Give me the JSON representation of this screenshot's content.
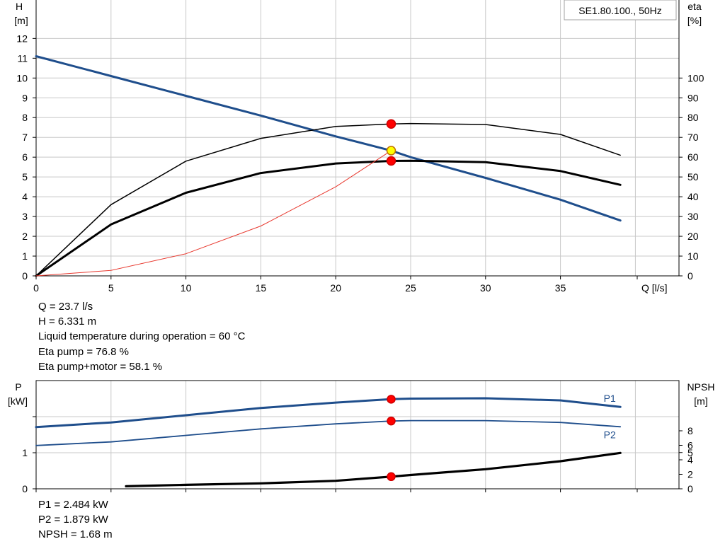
{
  "chart_data": [
    {
      "type": "line",
      "name": "pump-curves",
      "title": "",
      "legend_box": "SE1.80.100., 50Hz",
      "xlabel": "Q [l/s]",
      "ylabel_left_line1": "H",
      "ylabel_left_line2": "[m]",
      "ylabel_right_line1": "eta",
      "ylabel_right_line2": "[%]",
      "xlim": [
        0,
        40
      ],
      "ylim_left": [
        0,
        13
      ],
      "ylim_right": [
        0,
        130
      ],
      "x_ticks": [
        0,
        5,
        10,
        15,
        20,
        25,
        30,
        35
      ],
      "y_ticks_left": [
        0,
        1,
        2,
        3,
        4,
        5,
        6,
        7,
        8,
        9,
        10,
        11,
        12
      ],
      "y_ticks_right": [
        0,
        10,
        20,
        30,
        40,
        50,
        60,
        70,
        80,
        90,
        100
      ],
      "grid": true,
      "series": [
        {
          "axis": "left",
          "color": "#1f4e8c",
          "x": [
            0,
            5,
            10,
            15,
            20,
            23.7,
            25,
            30,
            35,
            39
          ],
          "y": [
            11.1,
            10.1,
            9.1,
            8.1,
            7.05,
            6.331,
            6.0,
            4.95,
            3.85,
            2.8
          ]
        },
        {
          "axis": "right",
          "color": "#000000",
          "x": [
            0,
            5,
            10,
            15,
            20,
            23.7,
            25,
            30,
            35,
            39
          ],
          "y": [
            0,
            36,
            58,
            69.5,
            75.5,
            76.8,
            77,
            76.5,
            71.5,
            61
          ]
        },
        {
          "axis": "right",
          "color": "#000000",
          "x": [
            0,
            5,
            10,
            15,
            20,
            23.7,
            25,
            30,
            35,
            39
          ],
          "y": [
            0,
            26,
            42,
            52,
            56.8,
            58.1,
            58.2,
            57.5,
            53,
            46
          ]
        },
        {
          "axis": "left",
          "color": "#e8382e",
          "x": [
            0,
            5,
            10,
            15,
            20,
            23.7
          ],
          "y": [
            0,
            0.28,
            1.12,
            2.52,
            4.5,
            6.331
          ]
        }
      ],
      "markers": [
        {
          "x": 23.7,
          "y": 76.8,
          "axis": "right",
          "color": "#ff0000"
        },
        {
          "x": 23.7,
          "y": 58.1,
          "axis": "right",
          "color": "#ff0000"
        },
        {
          "x": 23.7,
          "y": 6.331,
          "axis": "left",
          "color": "#ffff00"
        }
      ]
    },
    {
      "type": "line",
      "name": "power-npsh-curves",
      "title": "",
      "ylabel_left_line1": "P",
      "ylabel_left_line2": "[kW]",
      "ylabel_right_line1": "NPSH",
      "ylabel_right_line2": "[m]",
      "xlim": [
        0,
        40
      ],
      "ylim_left": [
        0,
        2.9
      ],
      "ylim_right": [
        0,
        12
      ],
      "y_ticks_left": [
        0,
        1
      ],
      "y_ticks_right": [
        0,
        2,
        4,
        5,
        6,
        8
      ],
      "grid": true,
      "series": [
        {
          "name": "P1",
          "axis": "left",
          "color": "#1f4e8c",
          "x": [
            0,
            5,
            10,
            15,
            20,
            23.7,
            25,
            30,
            35,
            39
          ],
          "y": [
            1.71,
            1.84,
            2.04,
            2.24,
            2.39,
            2.484,
            2.5,
            2.51,
            2.45,
            2.27
          ]
        },
        {
          "name": "P2",
          "axis": "left",
          "color": "#1f4e8c",
          "x": [
            0,
            5,
            10,
            15,
            20,
            23.7,
            25,
            30,
            35,
            39
          ],
          "y": [
            1.2,
            1.3,
            1.48,
            1.66,
            1.8,
            1.879,
            1.89,
            1.89,
            1.84,
            1.72
          ]
        },
        {
          "name": "",
          "axis": "right",
          "color": "#000000",
          "x": [
            6,
            10,
            15,
            20,
            23.7,
            25,
            30,
            35,
            39
          ],
          "y": [
            0.35,
            0.55,
            0.75,
            1.1,
            1.68,
            1.9,
            2.7,
            3.8,
            4.95
          ]
        }
      ],
      "markers": [
        {
          "x": 23.7,
          "y": 2.484,
          "axis": "left",
          "color": "#ff0000"
        },
        {
          "x": 23.7,
          "y": 1.879,
          "axis": "left",
          "color": "#ff0000"
        },
        {
          "x": 23.7,
          "y": 1.68,
          "axis": "right",
          "color": "#ff0000"
        }
      ]
    }
  ],
  "info_top": [
    "Q = 23.7 l/s",
    "H = 6.331 m",
    "Liquid temperature during operation = 60 °C",
    "Eta pump = 76.8 %",
    "Eta pump+motor = 58.1 %"
  ],
  "info_bottom": [
    "P1 = 2.484 kW",
    "P2 = 1.879 kW",
    "NPSH = 1.68 m"
  ]
}
